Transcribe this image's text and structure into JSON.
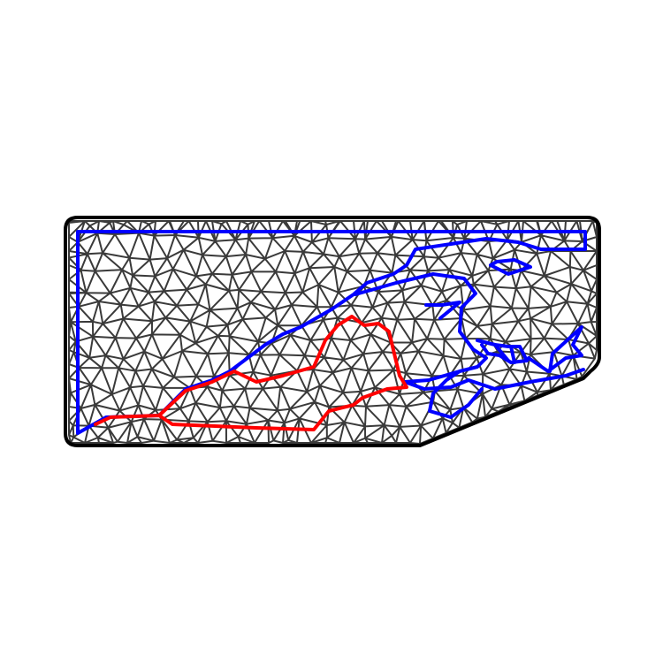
{
  "figure": {
    "description_title": "",
    "colors": {
      "background": "#ffffff",
      "mesh": "#3a3a3a",
      "boundary": "#000000",
      "blue_path": "#0000ff",
      "red_path": "#ff0000"
    },
    "elements": {
      "mesh": "triangular-mesh",
      "boundary": "domain-boundary",
      "blue_curve": "blue-interface-curve",
      "red_curve": "red-interface-curve"
    }
  }
}
